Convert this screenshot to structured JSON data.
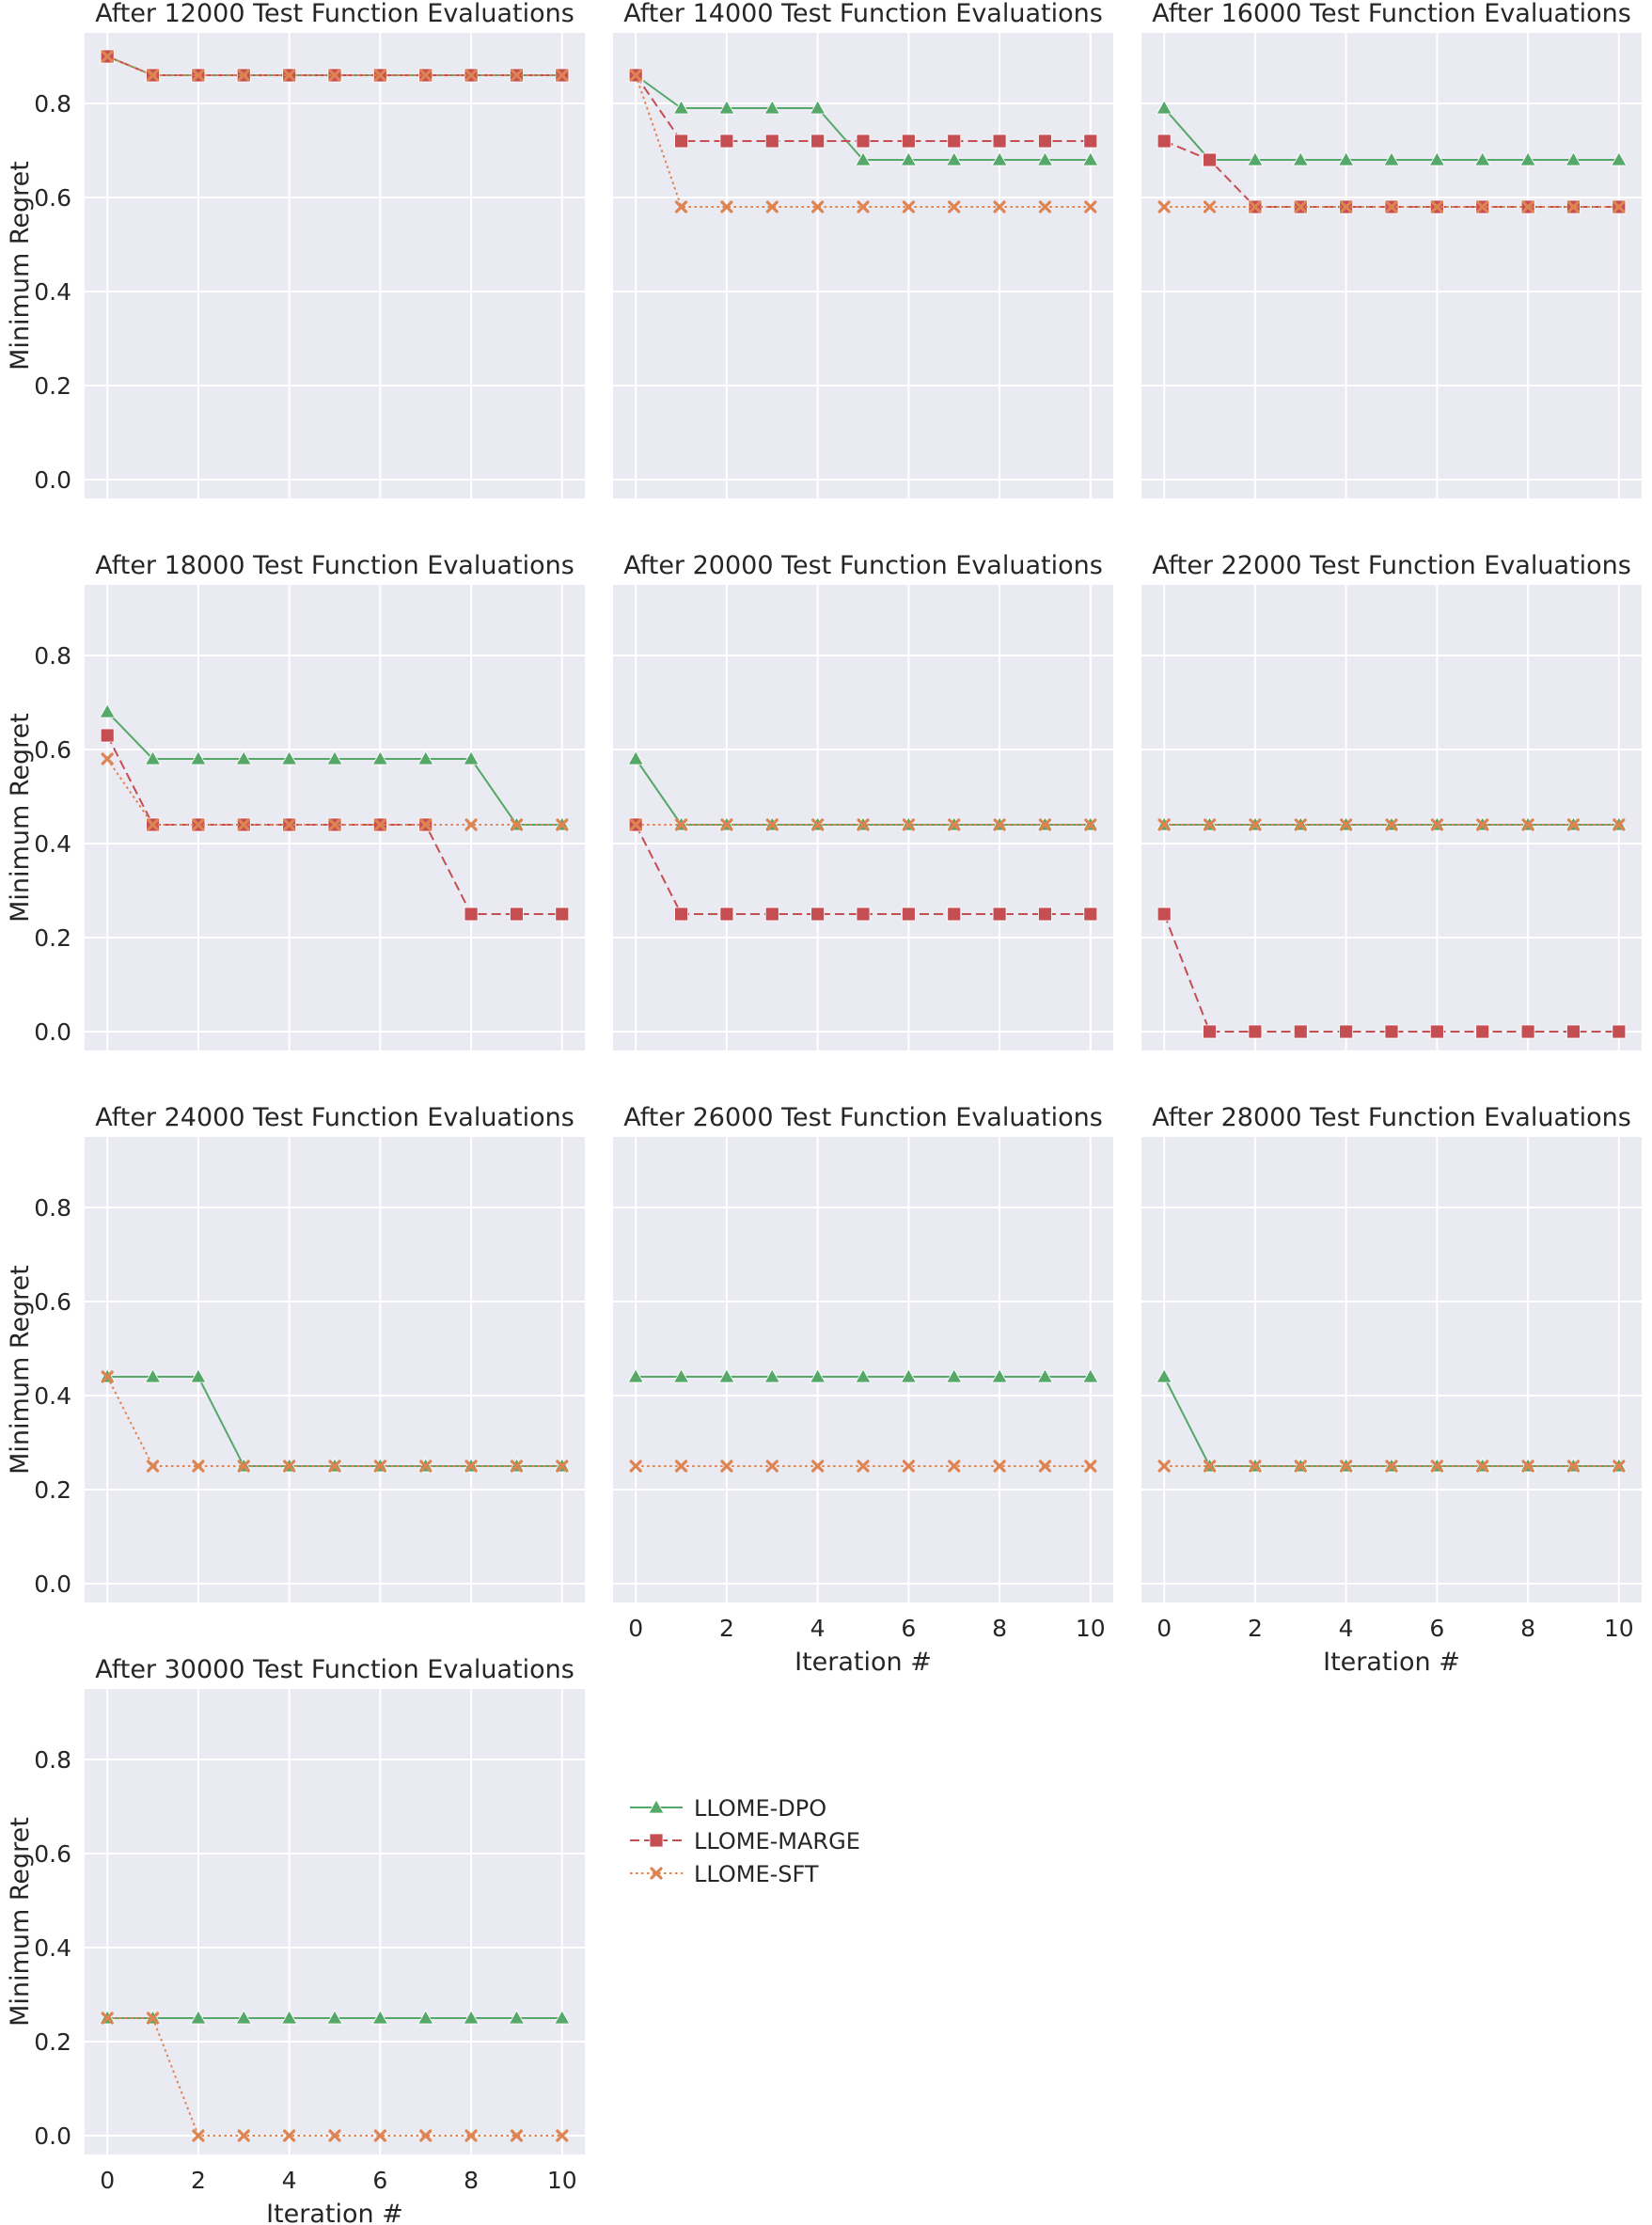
{
  "figure": {
    "series_styles": [
      {
        "name": "LLOME-DPO",
        "color": "#55a868",
        "marker": "triangle",
        "dash": "solid"
      },
      {
        "name": "LLOME-MARGE",
        "color": "#c44e52",
        "marker": "square",
        "dash": "dashed"
      },
      {
        "name": "LLOME-SFT",
        "color": "#dd8452",
        "marker": "x",
        "dash": "dotted"
      }
    ]
  },
  "chart_data": [
    {
      "type": "line",
      "title": "After 12000 Test Function Evaluations",
      "xlabel": "",
      "ylabel": "Minimum Regret",
      "x": [
        0,
        1,
        2,
        3,
        4,
        5,
        6,
        7,
        8,
        9,
        10
      ],
      "xlim": [
        -0.5,
        10.5
      ],
      "ylim": [
        -0.04,
        0.95
      ],
      "yticks": [
        0.0,
        0.2,
        0.4,
        0.6,
        0.8
      ],
      "ytick_labels": [
        "0.0",
        "0.2",
        "0.4",
        "0.6",
        "0.8"
      ],
      "xticks": [],
      "xtick_labels": [],
      "series": [
        {
          "name": "LLOME-DPO",
          "values": [
            0.9,
            0.86,
            0.86,
            0.86,
            0.86,
            0.86,
            0.86,
            0.86,
            0.86,
            0.86,
            0.86
          ]
        },
        {
          "name": "LLOME-MARGE",
          "values": [
            0.9,
            0.86,
            0.86,
            0.86,
            0.86,
            0.86,
            0.86,
            0.86,
            0.86,
            0.86,
            0.86
          ]
        },
        {
          "name": "LLOME-SFT",
          "values": [
            0.9,
            0.86,
            0.86,
            0.86,
            0.86,
            0.86,
            0.86,
            0.86,
            0.86,
            0.86,
            0.86
          ]
        }
      ]
    },
    {
      "type": "line",
      "title": "After 14000 Test Function Evaluations",
      "xlabel": "",
      "ylabel": "",
      "x": [
        0,
        1,
        2,
        3,
        4,
        5,
        6,
        7,
        8,
        9,
        10
      ],
      "xlim": [
        -0.5,
        10.5
      ],
      "ylim": [
        -0.04,
        0.95
      ],
      "yticks": [
        0.0,
        0.2,
        0.4,
        0.6,
        0.8
      ],
      "ytick_labels": [],
      "xticks": [],
      "xtick_labels": [],
      "series": [
        {
          "name": "LLOME-DPO",
          "values": [
            0.86,
            0.79,
            0.79,
            0.79,
            0.79,
            0.68,
            0.68,
            0.68,
            0.68,
            0.68,
            0.68
          ]
        },
        {
          "name": "LLOME-MARGE",
          "values": [
            0.86,
            0.72,
            0.72,
            0.72,
            0.72,
            0.72,
            0.72,
            0.72,
            0.72,
            0.72,
            0.72
          ]
        },
        {
          "name": "LLOME-SFT",
          "values": [
            0.86,
            0.58,
            0.58,
            0.58,
            0.58,
            0.58,
            0.58,
            0.58,
            0.58,
            0.58,
            0.58
          ]
        }
      ]
    },
    {
      "type": "line",
      "title": "After 16000 Test Function Evaluations",
      "xlabel": "",
      "ylabel": "",
      "x": [
        0,
        1,
        2,
        3,
        4,
        5,
        6,
        7,
        8,
        9,
        10
      ],
      "xlim": [
        -0.5,
        10.5
      ],
      "ylim": [
        -0.04,
        0.95
      ],
      "yticks": [
        0.0,
        0.2,
        0.4,
        0.6,
        0.8
      ],
      "ytick_labels": [],
      "xticks": [],
      "xtick_labels": [],
      "series": [
        {
          "name": "LLOME-DPO",
          "values": [
            0.79,
            0.68,
            0.68,
            0.68,
            0.68,
            0.68,
            0.68,
            0.68,
            0.68,
            0.68,
            0.68
          ]
        },
        {
          "name": "LLOME-MARGE",
          "values": [
            0.72,
            0.68,
            0.58,
            0.58,
            0.58,
            0.58,
            0.58,
            0.58,
            0.58,
            0.58,
            0.58
          ]
        },
        {
          "name": "LLOME-SFT",
          "values": [
            0.58,
            0.58,
            0.58,
            0.58,
            0.58,
            0.58,
            0.58,
            0.58,
            0.58,
            0.58,
            0.58
          ]
        }
      ]
    },
    {
      "type": "line",
      "title": "After 18000 Test Function Evaluations",
      "xlabel": "",
      "ylabel": "Minimum Regret",
      "x": [
        0,
        1,
        2,
        3,
        4,
        5,
        6,
        7,
        8,
        9,
        10
      ],
      "xlim": [
        -0.5,
        10.5
      ],
      "ylim": [
        -0.04,
        0.95
      ],
      "yticks": [
        0.0,
        0.2,
        0.4,
        0.6,
        0.8
      ],
      "ytick_labels": [
        "0.0",
        "0.2",
        "0.4",
        "0.6",
        "0.8"
      ],
      "xticks": [],
      "xtick_labels": [],
      "series": [
        {
          "name": "LLOME-DPO",
          "values": [
            0.68,
            0.58,
            0.58,
            0.58,
            0.58,
            0.58,
            0.58,
            0.58,
            0.58,
            0.44,
            0.44
          ]
        },
        {
          "name": "LLOME-MARGE",
          "values": [
            0.63,
            0.44,
            0.44,
            0.44,
            0.44,
            0.44,
            0.44,
            0.44,
            0.25,
            0.25,
            0.25
          ]
        },
        {
          "name": "LLOME-SFT",
          "values": [
            0.58,
            0.44,
            0.44,
            0.44,
            0.44,
            0.44,
            0.44,
            0.44,
            0.44,
            0.44,
            0.44
          ]
        }
      ]
    },
    {
      "type": "line",
      "title": "After 20000 Test Function Evaluations",
      "xlabel": "",
      "ylabel": "",
      "x": [
        0,
        1,
        2,
        3,
        4,
        5,
        6,
        7,
        8,
        9,
        10
      ],
      "xlim": [
        -0.5,
        10.5
      ],
      "ylim": [
        -0.04,
        0.95
      ],
      "yticks": [
        0.0,
        0.2,
        0.4,
        0.6,
        0.8
      ],
      "ytick_labels": [],
      "xticks": [],
      "xtick_labels": [],
      "series": [
        {
          "name": "LLOME-DPO",
          "values": [
            0.58,
            0.44,
            0.44,
            0.44,
            0.44,
            0.44,
            0.44,
            0.44,
            0.44,
            0.44,
            0.44
          ]
        },
        {
          "name": "LLOME-MARGE",
          "values": [
            0.44,
            0.25,
            0.25,
            0.25,
            0.25,
            0.25,
            0.25,
            0.25,
            0.25,
            0.25,
            0.25
          ]
        },
        {
          "name": "LLOME-SFT",
          "values": [
            0.44,
            0.44,
            0.44,
            0.44,
            0.44,
            0.44,
            0.44,
            0.44,
            0.44,
            0.44,
            0.44
          ]
        }
      ]
    },
    {
      "type": "line",
      "title": "After 22000 Test Function Evaluations",
      "xlabel": "",
      "ylabel": "",
      "x": [
        0,
        1,
        2,
        3,
        4,
        5,
        6,
        7,
        8,
        9,
        10
      ],
      "xlim": [
        -0.5,
        10.5
      ],
      "ylim": [
        -0.04,
        0.95
      ],
      "yticks": [
        0.0,
        0.2,
        0.4,
        0.6,
        0.8
      ],
      "ytick_labels": [],
      "xticks": [],
      "xtick_labels": [],
      "series": [
        {
          "name": "LLOME-DPO",
          "values": [
            0.44,
            0.44,
            0.44,
            0.44,
            0.44,
            0.44,
            0.44,
            0.44,
            0.44,
            0.44,
            0.44
          ]
        },
        {
          "name": "LLOME-MARGE",
          "values": [
            0.25,
            0.0,
            0.0,
            0.0,
            0.0,
            0.0,
            0.0,
            0.0,
            0.0,
            0.0,
            0.0
          ]
        },
        {
          "name": "LLOME-SFT",
          "values": [
            0.44,
            0.44,
            0.44,
            0.44,
            0.44,
            0.44,
            0.44,
            0.44,
            0.44,
            0.44,
            0.44
          ]
        }
      ]
    },
    {
      "type": "line",
      "title": "After 24000 Test Function Evaluations",
      "xlabel": "",
      "ylabel": "Minimum Regret",
      "x": [
        0,
        1,
        2,
        3,
        4,
        5,
        6,
        7,
        8,
        9,
        10
      ],
      "xlim": [
        -0.5,
        10.5
      ],
      "ylim": [
        -0.04,
        0.95
      ],
      "yticks": [
        0.0,
        0.2,
        0.4,
        0.6,
        0.8
      ],
      "ytick_labels": [
        "0.0",
        "0.2",
        "0.4",
        "0.6",
        "0.8"
      ],
      "xticks": [],
      "xtick_labels": [],
      "series": [
        {
          "name": "LLOME-DPO",
          "values": [
            0.44,
            0.44,
            0.44,
            0.25,
            0.25,
            0.25,
            0.25,
            0.25,
            0.25,
            0.25,
            0.25
          ]
        },
        {
          "name": "LLOME-SFT",
          "values": [
            0.44,
            0.25,
            0.25,
            0.25,
            0.25,
            0.25,
            0.25,
            0.25,
            0.25,
            0.25,
            0.25
          ]
        }
      ]
    },
    {
      "type": "line",
      "title": "After 26000 Test Function Evaluations",
      "xlabel": "Iteration #",
      "ylabel": "",
      "x": [
        0,
        1,
        2,
        3,
        4,
        5,
        6,
        7,
        8,
        9,
        10
      ],
      "xlim": [
        -0.5,
        10.5
      ],
      "ylim": [
        -0.04,
        0.95
      ],
      "yticks": [
        0.0,
        0.2,
        0.4,
        0.6,
        0.8
      ],
      "ytick_labels": [],
      "xticks": [
        0,
        2,
        4,
        6,
        8,
        10
      ],
      "xtick_labels": [
        "0",
        "2",
        "4",
        "6",
        "8",
        "10"
      ],
      "series": [
        {
          "name": "LLOME-DPO",
          "values": [
            0.44,
            0.44,
            0.44,
            0.44,
            0.44,
            0.44,
            0.44,
            0.44,
            0.44,
            0.44,
            0.44
          ]
        },
        {
          "name": "LLOME-SFT",
          "values": [
            0.25,
            0.25,
            0.25,
            0.25,
            0.25,
            0.25,
            0.25,
            0.25,
            0.25,
            0.25,
            0.25
          ]
        }
      ]
    },
    {
      "type": "line",
      "title": "After 28000 Test Function Evaluations",
      "xlabel": "Iteration #",
      "ylabel": "",
      "x": [
        0,
        1,
        2,
        3,
        4,
        5,
        6,
        7,
        8,
        9,
        10
      ],
      "xlim": [
        -0.5,
        10.5
      ],
      "ylim": [
        -0.04,
        0.95
      ],
      "yticks": [
        0.0,
        0.2,
        0.4,
        0.6,
        0.8
      ],
      "ytick_labels": [],
      "xticks": [
        0,
        2,
        4,
        6,
        8,
        10
      ],
      "xtick_labels": [
        "0",
        "2",
        "4",
        "6",
        "8",
        "10"
      ],
      "series": [
        {
          "name": "LLOME-DPO",
          "values": [
            0.44,
            0.25,
            0.25,
            0.25,
            0.25,
            0.25,
            0.25,
            0.25,
            0.25,
            0.25,
            0.25
          ]
        },
        {
          "name": "LLOME-SFT",
          "values": [
            0.25,
            0.25,
            0.25,
            0.25,
            0.25,
            0.25,
            0.25,
            0.25,
            0.25,
            0.25,
            0.25
          ]
        }
      ]
    },
    {
      "type": "line",
      "title": "After 30000 Test Function Evaluations",
      "xlabel": "Iteration #",
      "ylabel": "Minimum Regret",
      "x": [
        0,
        1,
        2,
        3,
        4,
        5,
        6,
        7,
        8,
        9,
        10
      ],
      "xlim": [
        -0.5,
        10.5
      ],
      "ylim": [
        -0.04,
        0.95
      ],
      "yticks": [
        0.0,
        0.2,
        0.4,
        0.6,
        0.8
      ],
      "ytick_labels": [
        "0.0",
        "0.2",
        "0.4",
        "0.6",
        "0.8"
      ],
      "xticks": [
        0,
        2,
        4,
        6,
        8,
        10
      ],
      "xtick_labels": [
        "0",
        "2",
        "4",
        "6",
        "8",
        "10"
      ],
      "series": [
        {
          "name": "LLOME-DPO",
          "values": [
            0.25,
            0.25,
            0.25,
            0.25,
            0.25,
            0.25,
            0.25,
            0.25,
            0.25,
            0.25,
            0.25
          ]
        },
        {
          "name": "LLOME-SFT",
          "values": [
            0.25,
            0.25,
            0.0,
            0.0,
            0.0,
            0.0,
            0.0,
            0.0,
            0.0,
            0.0,
            0.0
          ]
        }
      ]
    }
  ],
  "legend": {
    "entries": [
      {
        "label": "LLOME-DPO",
        "color": "#55a868",
        "marker": "triangle",
        "dash": "solid"
      },
      {
        "label": "LLOME-MARGE",
        "color": "#c44e52",
        "marker": "square",
        "dash": "dashed"
      },
      {
        "label": "LLOME-SFT",
        "color": "#dd8452",
        "marker": "x",
        "dash": "dotted"
      }
    ]
  }
}
